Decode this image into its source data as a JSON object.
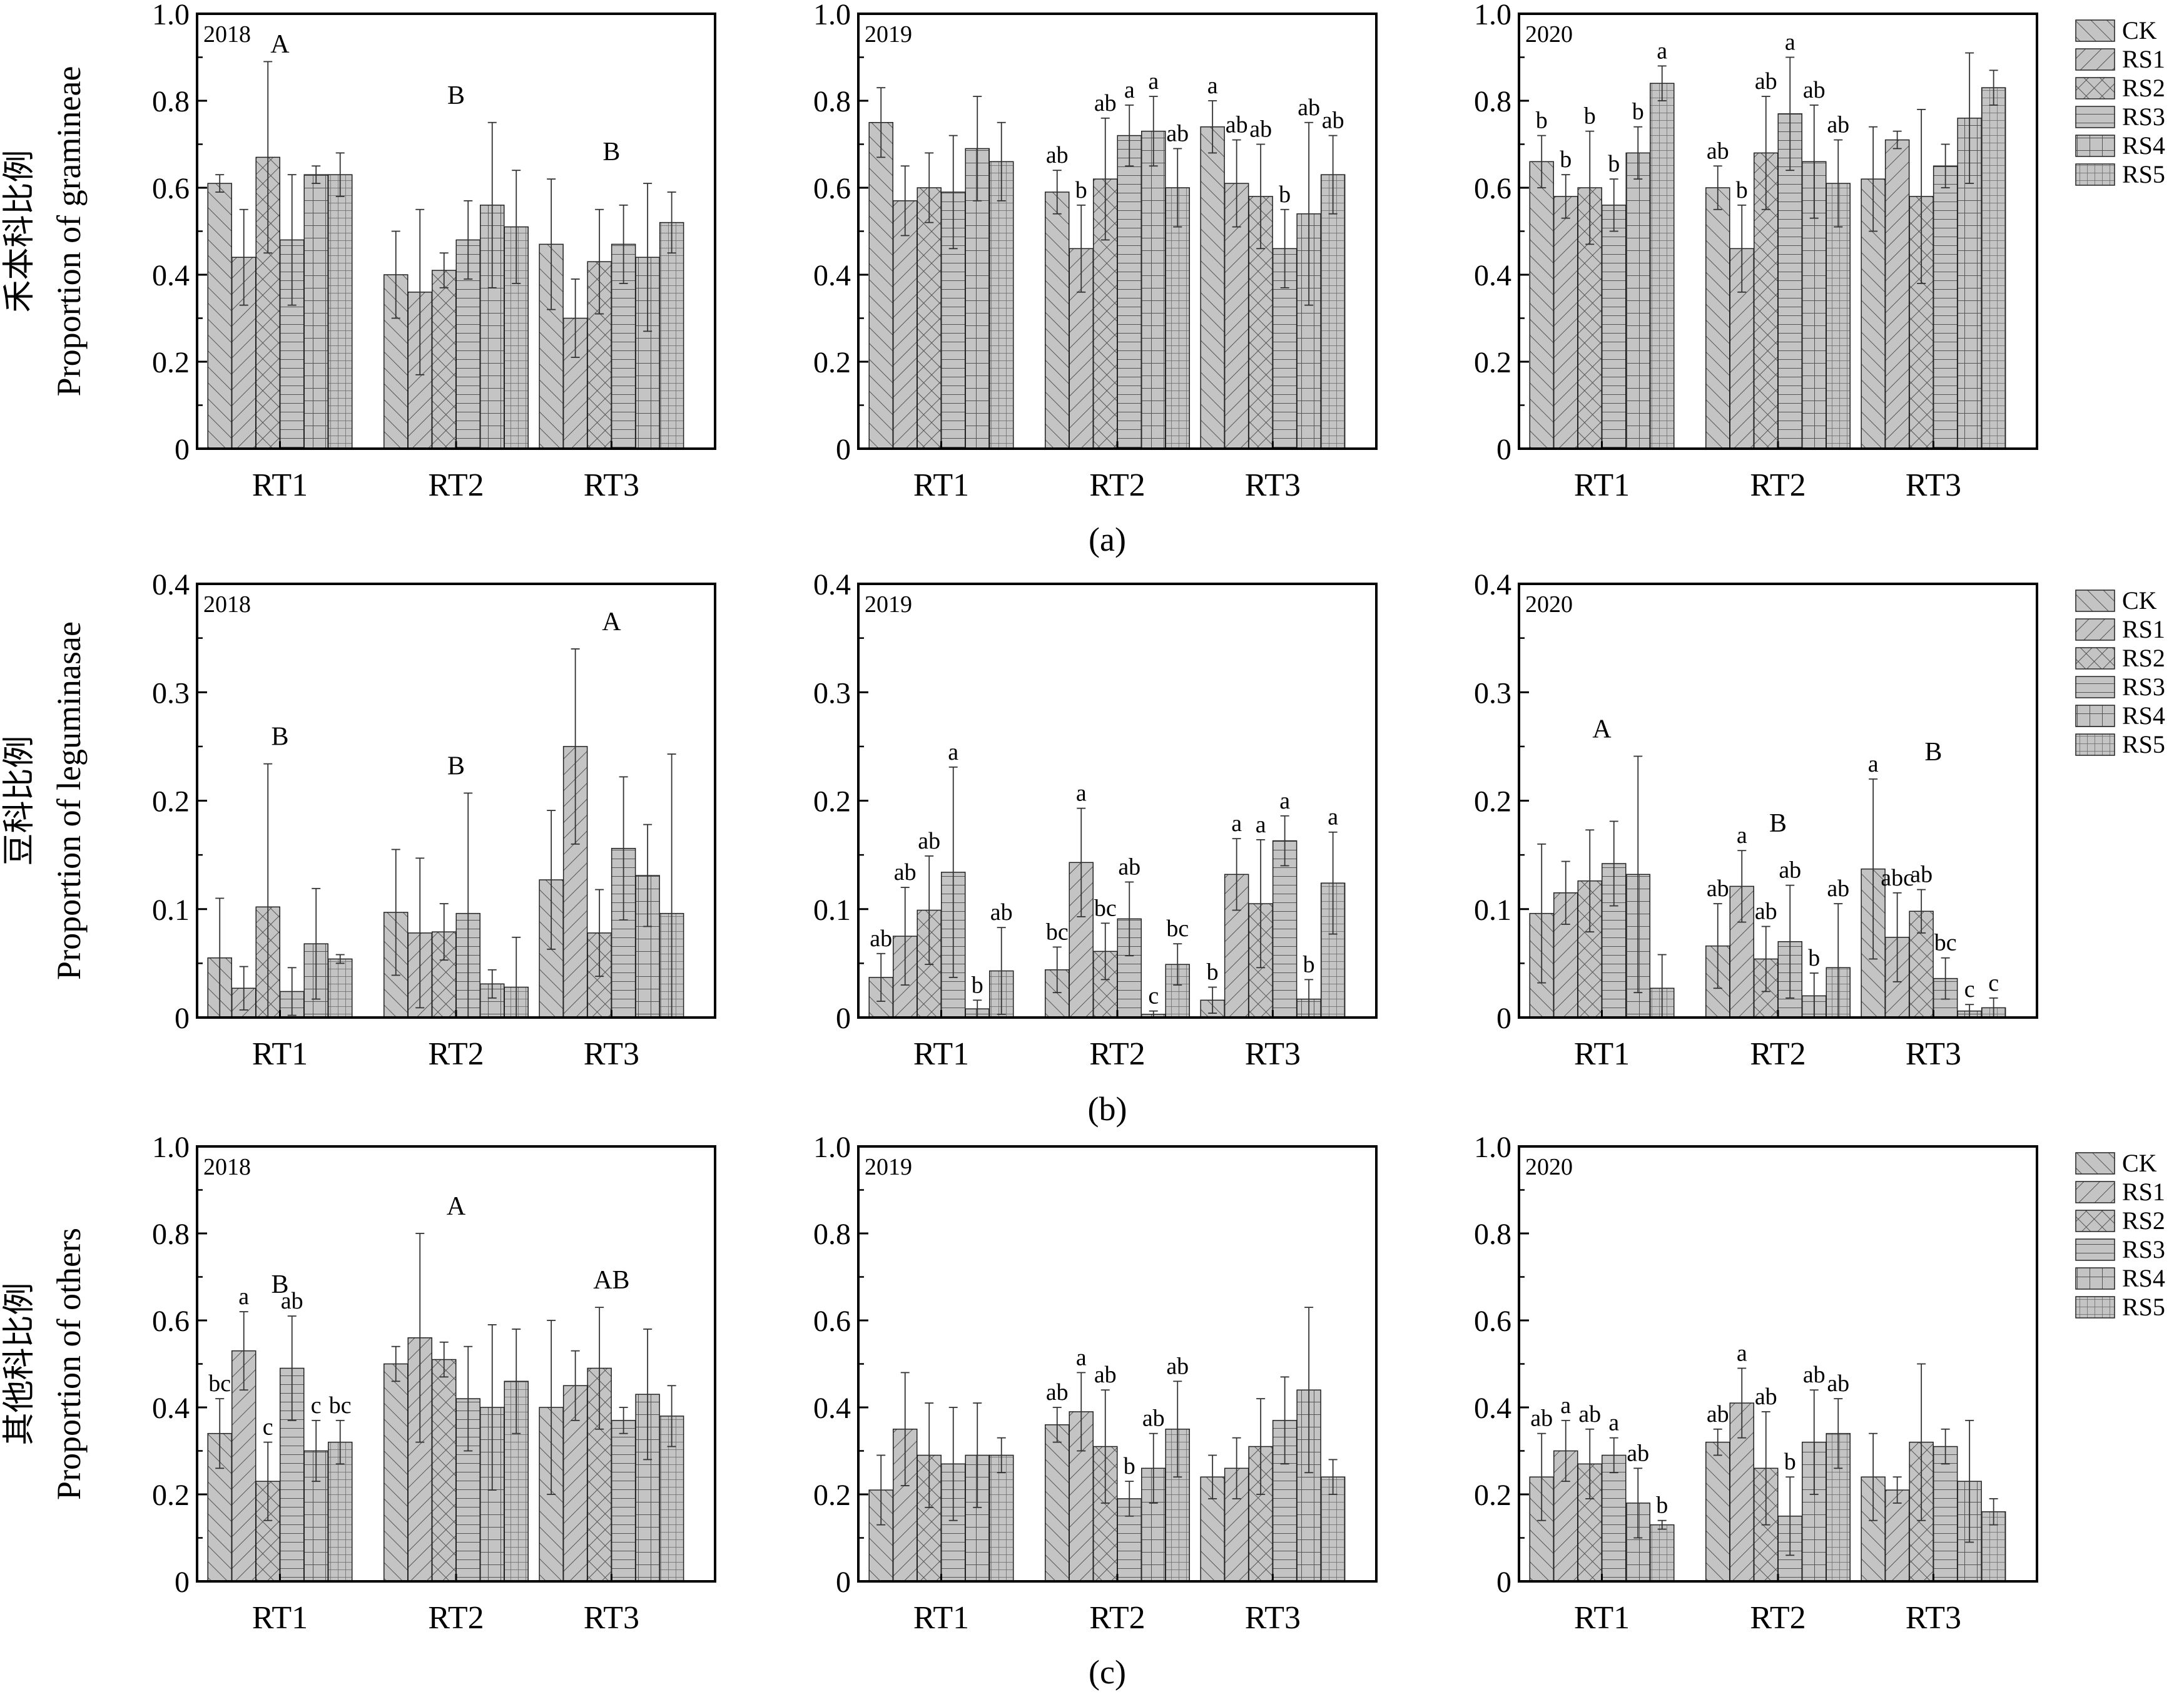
{
  "colors": {
    "bar_fill": "#c4c4c4",
    "bar_stroke": "#222222",
    "hatch_stroke": "#555555",
    "axis": "#000000",
    "background": "#ffffff"
  },
  "legend": {
    "items": [
      {
        "label": "CK",
        "hatch": "diag-right"
      },
      {
        "label": "RS1",
        "hatch": "diag-left"
      },
      {
        "label": "RS2",
        "hatch": "cross-diag"
      },
      {
        "label": "RS3",
        "hatch": "horizontal"
      },
      {
        "label": "RS4",
        "hatch": "grid"
      },
      {
        "label": "RS5",
        "hatch": "dense-grid"
      }
    ]
  },
  "rows": [
    {
      "caption": "(a)",
      "ylabel_cn": "禾本科比例",
      "ylabel_en": "Proportion of gramineae",
      "ylim": [
        0,
        1.0
      ],
      "yticks": [
        0,
        0.2,
        0.4,
        0.6,
        0.8,
        1.0
      ],
      "ytick_labels": [
        "0",
        "0.2",
        "0.4",
        "0.6",
        "0.8",
        "1.0"
      ]
    },
    {
      "caption": "(b)",
      "ylabel_cn": "豆科比例",
      "ylabel_en": "Proportion of leguminasae",
      "ylim": [
        0,
        0.4
      ],
      "yticks": [
        0,
        0.1,
        0.2,
        0.3,
        0.4
      ],
      "ytick_labels": [
        "0",
        "0.1",
        "0.2",
        "0.3",
        "0.4"
      ]
    },
    {
      "caption": "(c)",
      "ylabel_cn": "其他科比例",
      "ylabel_en": "Proportion of others",
      "ylim": [
        0,
        1.0
      ],
      "yticks": [
        0,
        0.2,
        0.4,
        0.6,
        0.8,
        1.0
      ],
      "ytick_labels": [
        "0",
        "0.2",
        "0.4",
        "0.6",
        "0.8",
        "1.0"
      ]
    }
  ],
  "chart_data": [
    {
      "type": "bar",
      "row": 0,
      "year": "2018",
      "categories": [
        "RT1",
        "RT2",
        "RT3"
      ],
      "series": [
        {
          "name": "CK",
          "values": [
            0.61,
            0.4,
            0.47
          ],
          "errors": [
            0.02,
            0.1,
            0.15
          ]
        },
        {
          "name": "RS1",
          "values": [
            0.44,
            0.36,
            0.3
          ],
          "errors": [
            0.11,
            0.19,
            0.09
          ]
        },
        {
          "name": "RS2",
          "values": [
            0.67,
            0.41,
            0.43
          ],
          "errors": [
            0.22,
            0.04,
            0.12
          ]
        },
        {
          "name": "RS3",
          "values": [
            0.48,
            0.48,
            0.47
          ],
          "errors": [
            0.15,
            0.09,
            0.09
          ]
        },
        {
          "name": "RS4",
          "values": [
            0.63,
            0.56,
            0.44
          ],
          "errors": [
            0.02,
            0.19,
            0.17
          ]
        },
        {
          "name": "RS5",
          "values": [
            0.63,
            0.51,
            0.52
          ],
          "errors": [
            0.05,
            0.13,
            0.07
          ]
        }
      ],
      "bar_labels": [
        [
          "",
          "",
          "",
          "",
          "",
          ""
        ],
        [
          "",
          "",
          "",
          "",
          "",
          ""
        ],
        [
          "",
          "",
          "",
          "",
          "",
          ""
        ]
      ],
      "group_labels": [
        "A",
        "B",
        "B"
      ]
    },
    {
      "type": "bar",
      "row": 0,
      "year": "2019",
      "categories": [
        "RT1",
        "RT2",
        "RT3"
      ],
      "series": [
        {
          "name": "CK",
          "values": [
            0.75,
            0.59,
            0.74
          ],
          "errors": [
            0.08,
            0.05,
            0.06
          ]
        },
        {
          "name": "RS1",
          "values": [
            0.57,
            0.46,
            0.61
          ],
          "errors": [
            0.08,
            0.1,
            0.1
          ]
        },
        {
          "name": "RS2",
          "values": [
            0.6,
            0.62,
            0.58
          ],
          "errors": [
            0.08,
            0.14,
            0.12
          ]
        },
        {
          "name": "RS3",
          "values": [
            0.59,
            0.72,
            0.46
          ],
          "errors": [
            0.13,
            0.07,
            0.09
          ]
        },
        {
          "name": "RS4",
          "values": [
            0.69,
            0.73,
            0.54
          ],
          "errors": [
            0.12,
            0.08,
            0.21
          ]
        },
        {
          "name": "RS5",
          "values": [
            0.66,
            0.6,
            0.63
          ],
          "errors": [
            0.09,
            0.09,
            0.09
          ]
        }
      ],
      "bar_labels": [
        [
          "",
          "",
          "",
          "",
          "",
          ""
        ],
        [
          "ab",
          "b",
          "ab",
          "a",
          "a",
          "ab"
        ],
        [
          "a",
          "ab",
          "ab",
          "b",
          "ab",
          "ab"
        ]
      ],
      "group_labels": [
        "",
        "",
        ""
      ]
    },
    {
      "type": "bar",
      "row": 0,
      "year": "2020",
      "categories": [
        "RT1",
        "RT2",
        "RT3"
      ],
      "series": [
        {
          "name": "CK",
          "values": [
            0.66,
            0.6,
            0.62
          ],
          "errors": [
            0.06,
            0.05,
            0.12
          ]
        },
        {
          "name": "RS1",
          "values": [
            0.58,
            0.46,
            0.71
          ],
          "errors": [
            0.05,
            0.1,
            0.02
          ]
        },
        {
          "name": "RS2",
          "values": [
            0.6,
            0.68,
            0.58
          ],
          "errors": [
            0.13,
            0.13,
            0.2
          ]
        },
        {
          "name": "RS3",
          "values": [
            0.56,
            0.77,
            0.65
          ],
          "errors": [
            0.06,
            0.13,
            0.05
          ]
        },
        {
          "name": "RS4",
          "values": [
            0.68,
            0.66,
            0.76
          ],
          "errors": [
            0.06,
            0.13,
            0.15
          ]
        },
        {
          "name": "RS5",
          "values": [
            0.84,
            0.61,
            0.83
          ],
          "errors": [
            0.04,
            0.1,
            0.04
          ]
        }
      ],
      "bar_labels": [
        [
          "b",
          "b",
          "b",
          "b",
          "b",
          "a"
        ],
        [
          "ab",
          "b",
          "ab",
          "a",
          "ab",
          "ab"
        ],
        [
          "",
          "",
          "",
          "",
          "",
          ""
        ]
      ],
      "group_labels": [
        "",
        "",
        ""
      ]
    },
    {
      "type": "bar",
      "row": 1,
      "year": "2018",
      "categories": [
        "RT1",
        "RT2",
        "RT3"
      ],
      "series": [
        {
          "name": "CK",
          "values": [
            0.055,
            0.097,
            0.127
          ],
          "errors": [
            0.055,
            0.058,
            0.064
          ]
        },
        {
          "name": "RS1",
          "values": [
            0.027,
            0.078,
            0.25
          ],
          "errors": [
            0.02,
            0.069,
            0.09
          ]
        },
        {
          "name": "RS2",
          "values": [
            0.102,
            0.079,
            0.078
          ],
          "errors": [
            0.132,
            0.026,
            0.04
          ]
        },
        {
          "name": "RS3",
          "values": [
            0.024,
            0.096,
            0.156
          ],
          "errors": [
            0.022,
            0.111,
            0.066
          ]
        },
        {
          "name": "RS4",
          "values": [
            0.068,
            0.031,
            0.131
          ],
          "errors": [
            0.051,
            0.013,
            0.047
          ]
        },
        {
          "name": "RS5",
          "values": [
            0.054,
            0.028,
            0.096
          ],
          "errors": [
            0.004,
            0.046,
            0.147
          ]
        }
      ],
      "bar_labels": [
        [
          "",
          "",
          "",
          "",
          "",
          ""
        ],
        [
          "",
          "",
          "",
          "",
          "",
          ""
        ],
        [
          "",
          "",
          "",
          "",
          "",
          ""
        ]
      ],
      "group_labels": [
        "B",
        "B",
        "A"
      ]
    },
    {
      "type": "bar",
      "row": 1,
      "year": "2019",
      "categories": [
        "RT1",
        "RT2",
        "RT3"
      ],
      "series": [
        {
          "name": "CK",
          "values": [
            0.037,
            0.044,
            0.016
          ],
          "errors": [
            0.022,
            0.021,
            0.012
          ]
        },
        {
          "name": "RS1",
          "values": [
            0.075,
            0.143,
            0.132
          ],
          "errors": [
            0.045,
            0.05,
            0.033
          ]
        },
        {
          "name": "RS2",
          "values": [
            0.099,
            0.061,
            0.105
          ],
          "errors": [
            0.05,
            0.026,
            0.059
          ]
        },
        {
          "name": "RS3",
          "values": [
            0.134,
            0.091,
            0.163
          ],
          "errors": [
            0.097,
            0.034,
            0.023
          ]
        },
        {
          "name": "RS4",
          "values": [
            0.008,
            0.003,
            0.017
          ],
          "errors": [
            0.008,
            0.003,
            0.018
          ]
        },
        {
          "name": "RS5",
          "values": [
            0.043,
            0.049,
            0.124
          ],
          "errors": [
            0.04,
            0.019,
            0.047
          ]
        }
      ],
      "bar_labels": [
        [
          "ab",
          "ab",
          "ab",
          "a",
          "b",
          "ab"
        ],
        [
          "bc",
          "a",
          "bc",
          "ab",
          "c",
          "bc"
        ],
        [
          "b",
          "a",
          "a",
          "a",
          "b",
          "a"
        ]
      ],
      "group_labels": [
        "",
        "",
        ""
      ]
    },
    {
      "type": "bar",
      "row": 1,
      "year": "2020",
      "categories": [
        "RT1",
        "RT2",
        "RT3"
      ],
      "series": [
        {
          "name": "CK",
          "values": [
            0.096,
            0.066,
            0.137
          ],
          "errors": [
            0.064,
            0.039,
            0.083
          ]
        },
        {
          "name": "RS1",
          "values": [
            0.115,
            0.121,
            0.074
          ],
          "errors": [
            0.029,
            0.033,
            0.041
          ]
        },
        {
          "name": "RS2",
          "values": [
            0.126,
            0.054,
            0.098
          ],
          "errors": [
            0.047,
            0.03,
            0.02
          ]
        },
        {
          "name": "RS3",
          "values": [
            0.142,
            0.07,
            0.036
          ],
          "errors": [
            0.039,
            0.052,
            0.019
          ]
        },
        {
          "name": "RS4",
          "values": [
            0.132,
            0.02,
            0.006
          ],
          "errors": [
            0.109,
            0.021,
            0.006
          ]
        },
        {
          "name": "RS5",
          "values": [
            0.027,
            0.046,
            0.009
          ],
          "errors": [
            0.031,
            0.059,
            0.009
          ]
        }
      ],
      "bar_labels": [
        [
          "",
          "",
          "",
          "",
          "",
          ""
        ],
        [
          "ab",
          "a",
          "ab",
          "ab",
          "b",
          "ab"
        ],
        [
          "a",
          "abc",
          "ab",
          "bc",
          "c",
          "c"
        ]
      ],
      "group_labels": [
        "A",
        "B",
        "B"
      ]
    },
    {
      "type": "bar",
      "row": 2,
      "year": "2018",
      "categories": [
        "RT1",
        "RT2",
        "RT3"
      ],
      "series": [
        {
          "name": "CK",
          "values": [
            0.34,
            0.5,
            0.4
          ],
          "errors": [
            0.08,
            0.04,
            0.2
          ]
        },
        {
          "name": "RS1",
          "values": [
            0.53,
            0.56,
            0.45
          ],
          "errors": [
            0.09,
            0.24,
            0.08
          ]
        },
        {
          "name": "RS2",
          "values": [
            0.23,
            0.51,
            0.49
          ],
          "errors": [
            0.09,
            0.04,
            0.14
          ]
        },
        {
          "name": "RS3",
          "values": [
            0.49,
            0.42,
            0.37
          ],
          "errors": [
            0.12,
            0.12,
            0.03
          ]
        },
        {
          "name": "RS4",
          "values": [
            0.3,
            0.4,
            0.43
          ],
          "errors": [
            0.07,
            0.19,
            0.15
          ]
        },
        {
          "name": "RS5",
          "values": [
            0.32,
            0.46,
            0.38
          ],
          "errors": [
            0.05,
            0.12,
            0.07
          ]
        }
      ],
      "bar_labels": [
        [
          "bc",
          "a",
          "c",
          "ab",
          "c",
          "bc"
        ],
        [
          "",
          "",
          "",
          "",
          "",
          ""
        ],
        [
          "",
          "",
          "",
          "",
          "",
          ""
        ]
      ],
      "group_labels": [
        "B",
        "A",
        "AB"
      ]
    },
    {
      "type": "bar",
      "row": 2,
      "year": "2019",
      "categories": [
        "RT1",
        "RT2",
        "RT3"
      ],
      "series": [
        {
          "name": "CK",
          "values": [
            0.21,
            0.36,
            0.24
          ],
          "errors": [
            0.08,
            0.04,
            0.05
          ]
        },
        {
          "name": "RS1",
          "values": [
            0.35,
            0.39,
            0.26
          ],
          "errors": [
            0.13,
            0.09,
            0.07
          ]
        },
        {
          "name": "RS2",
          "values": [
            0.29,
            0.31,
            0.31
          ],
          "errors": [
            0.12,
            0.13,
            0.11
          ]
        },
        {
          "name": "RS3",
          "values": [
            0.27,
            0.19,
            0.37
          ],
          "errors": [
            0.13,
            0.04,
            0.1
          ]
        },
        {
          "name": "RS4",
          "values": [
            0.29,
            0.26,
            0.44
          ],
          "errors": [
            0.12,
            0.08,
            0.19
          ]
        },
        {
          "name": "RS5",
          "values": [
            0.29,
            0.35,
            0.24
          ],
          "errors": [
            0.04,
            0.11,
            0.04
          ]
        }
      ],
      "bar_labels": [
        [
          "",
          "",
          "",
          "",
          "",
          ""
        ],
        [
          "ab",
          "a",
          "ab",
          "b",
          "ab",
          "ab"
        ],
        [
          "",
          "",
          "",
          "",
          "",
          ""
        ]
      ],
      "group_labels": [
        "",
        "",
        ""
      ]
    },
    {
      "type": "bar",
      "row": 2,
      "year": "2020",
      "categories": [
        "RT1",
        "RT2",
        "RT3"
      ],
      "series": [
        {
          "name": "CK",
          "values": [
            0.24,
            0.32,
            0.24
          ],
          "errors": [
            0.1,
            0.03,
            0.1
          ]
        },
        {
          "name": "RS1",
          "values": [
            0.3,
            0.41,
            0.21
          ],
          "errors": [
            0.07,
            0.08,
            0.03
          ]
        },
        {
          "name": "RS2",
          "values": [
            0.27,
            0.26,
            0.32
          ],
          "errors": [
            0.08,
            0.13,
            0.18
          ]
        },
        {
          "name": "RS3",
          "values": [
            0.29,
            0.15,
            0.31
          ],
          "errors": [
            0.04,
            0.09,
            0.04
          ]
        },
        {
          "name": "RS4",
          "values": [
            0.18,
            0.32,
            0.23
          ],
          "errors": [
            0.08,
            0.12,
            0.14
          ]
        },
        {
          "name": "RS5",
          "values": [
            0.13,
            0.34,
            0.16
          ],
          "errors": [
            0.01,
            0.08,
            0.03
          ]
        }
      ],
      "bar_labels": [
        [
          "ab",
          "a",
          "ab",
          "a",
          "ab",
          "b"
        ],
        [
          "ab",
          "a",
          "ab",
          "b",
          "ab",
          "ab"
        ],
        [
          "",
          "",
          "",
          "",
          "",
          ""
        ]
      ],
      "group_labels": [
        "",
        "",
        ""
      ]
    }
  ]
}
